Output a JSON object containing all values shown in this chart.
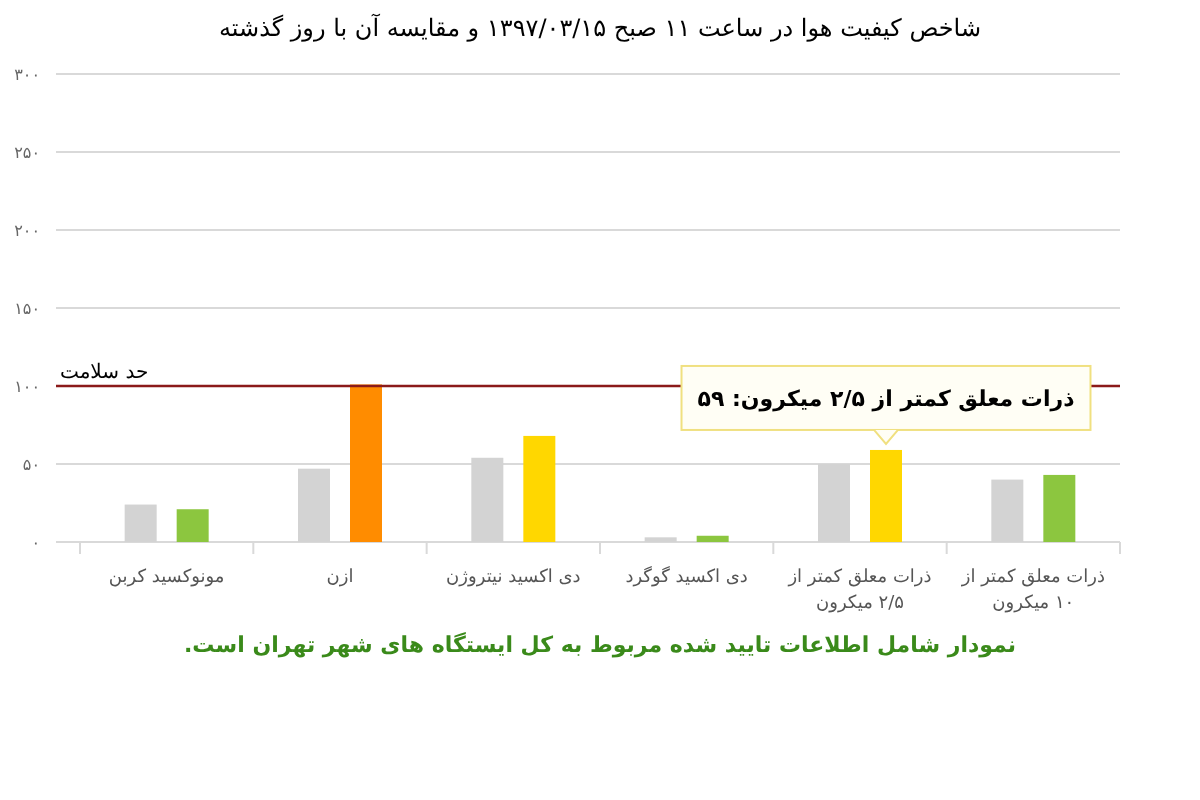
{
  "chart_data": {
    "type": "bar",
    "title": "شاخص کیفیت هوا در ساعت ۱۱ صبح ۱۳۹۷/۰۳/۱۵ و مقایسه آن با روز گذشته",
    "categories": [
      "مونوکسید کربن",
      "ازن",
      "دی اکسید نیتروژن",
      "دی اکسید گوگرد",
      "ذرات معلق کمتر از ۲/۵ میکرون",
      "ذرات معلق کمتر از ۱۰ میکرون"
    ],
    "series": [
      {
        "color": "#d3d3d3",
        "values": [
          24,
          47,
          54,
          3,
          50,
          40
        ]
      },
      {
        "colors": [
          "#8cc63f",
          "#ff8c00",
          "#ffd700",
          "#8cc63f",
          "#ffd700",
          "#8cc63f"
        ],
        "values": [
          21,
          101,
          68,
          4,
          59,
          43
        ]
      }
    ],
    "ylim": [
      0,
      300
    ],
    "yticks": [
      {
        "value": 0,
        "label": "۰"
      },
      {
        "value": 50,
        "label": "۵۰"
      },
      {
        "value": 100,
        "label": "۱۰۰"
      },
      {
        "value": 150,
        "label": "۱۵۰"
      },
      {
        "value": 200,
        "label": "۲۰۰"
      },
      {
        "value": 250,
        "label": "۲۵۰"
      },
      {
        "value": 300,
        "label": "۳۰۰"
      }
    ],
    "grid": "y",
    "ref_lines": [
      {
        "axis": "y",
        "value": 100,
        "label": "حد سلامت",
        "color": "#8b1a1a"
      }
    ],
    "annotations": [
      {
        "text": "ذرات معلق کمتر از ۲/۵ میکرون: ۵۹",
        "x": "ذرات معلق کمتر از ۲/۵ میکرون",
        "y": 59
      },
      "نمودار شامل اطلاعات تایید شده مربوط به کل ایستگاه های شهر تهران است."
    ]
  }
}
